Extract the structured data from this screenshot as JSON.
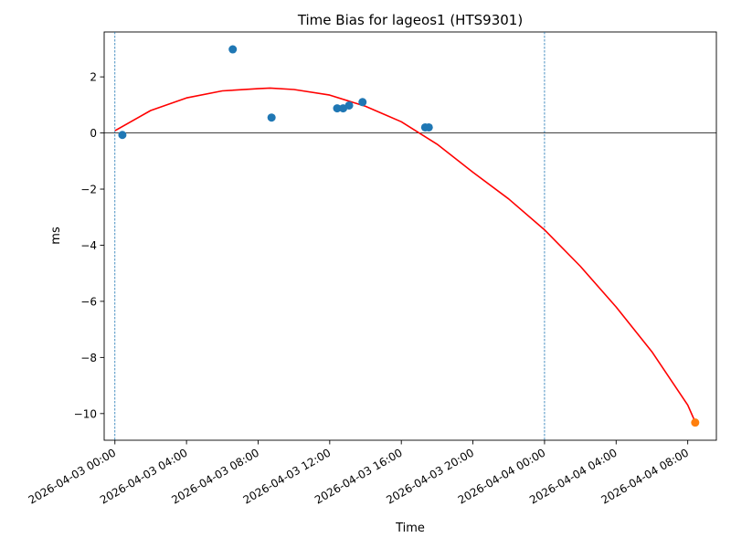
{
  "chart_data": {
    "type": "scatter",
    "title": "Time Bias for lageos1 (HTS9301)",
    "xlabel": "Time",
    "ylabel": "ms",
    "x_axis_kind": "datetime",
    "xlim": [
      "2026-04-02 23:24",
      "2026-04-04 09:36"
    ],
    "ylim": [
      -10.95,
      3.6
    ],
    "x_ticks": [
      "2026-04-03 00:00",
      "2026-04-03 04:00",
      "2026-04-03 08:00",
      "2026-04-03 12:00",
      "2026-04-03 16:00",
      "2026-04-03 20:00",
      "2026-04-04 00:00",
      "2026-04-04 04:00",
      "2026-04-04 08:00"
    ],
    "y_ticks": [
      2,
      0,
      -2,
      -4,
      -6,
      -8,
      -10
    ],
    "y_tick_labels": [
      "2",
      "0",
      "−2",
      "−4",
      "−6",
      "−8",
      "−10"
    ],
    "grid": false,
    "zero_line": 0,
    "vertical_lines": [
      "2026-04-03 00:00",
      "2026-04-04 00:00"
    ],
    "series": [
      {
        "color": "#1f77b4",
        "points": [
          {
            "x": "2026-04-03 00:25",
            "y": -0.07
          },
          {
            "x": "2026-04-03 06:35",
            "y": 2.98
          },
          {
            "x": "2026-04-03 08:45",
            "y": 0.55
          },
          {
            "x": "2026-04-03 12:25",
            "y": 0.88
          },
          {
            "x": "2026-04-03 12:45",
            "y": 0.88
          },
          {
            "x": "2026-04-03 13:05",
            "y": 0.98
          },
          {
            "x": "2026-04-03 13:50",
            "y": 1.1
          },
          {
            "x": "2026-04-03 17:20",
            "y": 0.2
          },
          {
            "x": "2026-04-03 17:32",
            "y": 0.2
          }
        ]
      },
      {
        "color": "#ff7f0e",
        "points": [
          {
            "x": "2026-04-04 08:25",
            "y": -10.32
          }
        ]
      },
      {
        "type": "line",
        "color": "#ff0000",
        "points": [
          {
            "x": "2026-04-03 00:00",
            "y": 0.08
          },
          {
            "x": "2026-04-03 02:00",
            "y": 0.8
          },
          {
            "x": "2026-04-03 04:00",
            "y": 1.25
          },
          {
            "x": "2026-04-03 06:00",
            "y": 1.5
          },
          {
            "x": "2026-04-03 08:00",
            "y": 1.58
          },
          {
            "x": "2026-04-03 08:40",
            "y": 1.6
          },
          {
            "x": "2026-04-03 10:00",
            "y": 1.55
          },
          {
            "x": "2026-04-03 12:00",
            "y": 1.35
          },
          {
            "x": "2026-04-03 14:00",
            "y": 0.95
          },
          {
            "x": "2026-04-03 16:00",
            "y": 0.4
          },
          {
            "x": "2026-04-03 18:00",
            "y": -0.4
          },
          {
            "x": "2026-04-03 20:00",
            "y": -1.4
          },
          {
            "x": "2026-04-03 22:00",
            "y": -2.35
          },
          {
            "x": "2026-04-04 00:00",
            "y": -3.45
          },
          {
            "x": "2026-04-04 02:00",
            "y": -4.75
          },
          {
            "x": "2026-04-04 04:00",
            "y": -6.2
          },
          {
            "x": "2026-04-04 06:00",
            "y": -7.8
          },
          {
            "x": "2026-04-04 08:00",
            "y": -9.7
          },
          {
            "x": "2026-04-04 08:25",
            "y": -10.3
          }
        ]
      }
    ]
  }
}
